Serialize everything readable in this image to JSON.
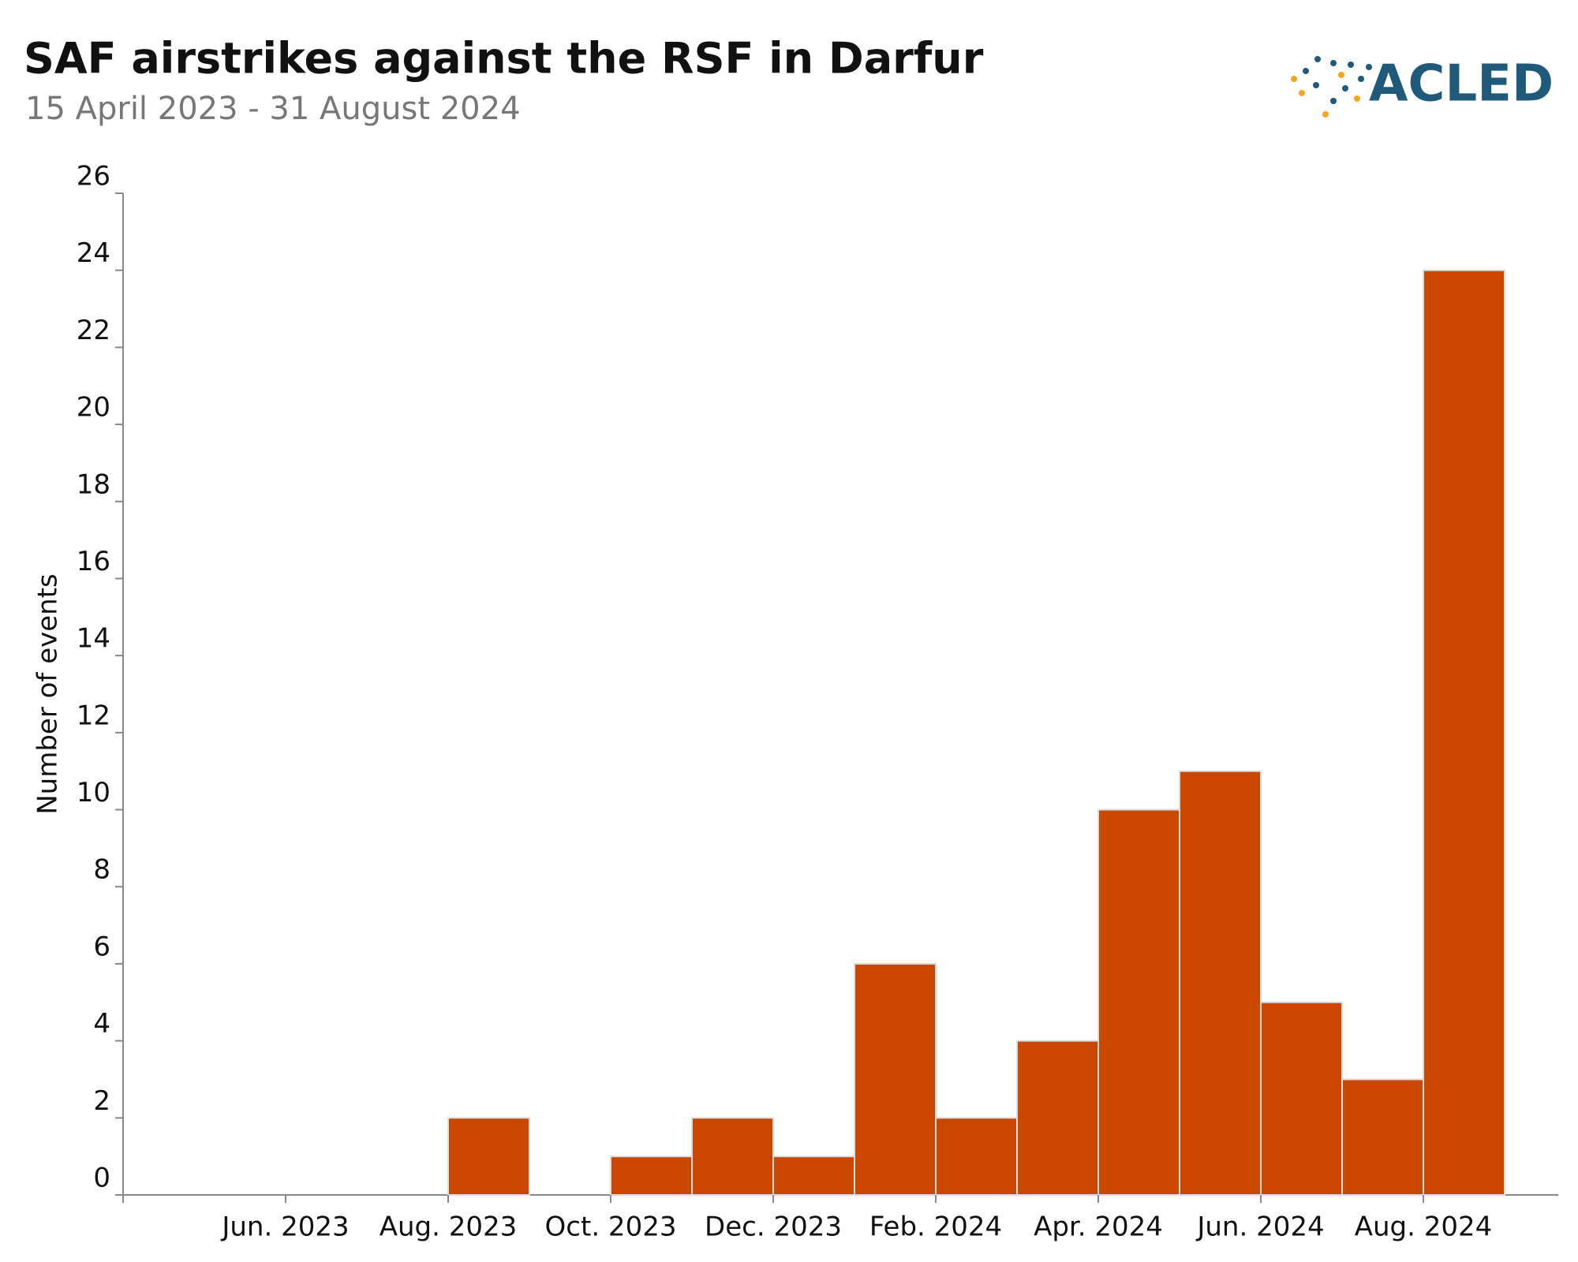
{
  "logo_text": "ACLED",
  "chart_data": {
    "type": "bar",
    "title": "SAF airstrikes against the RSF in Darfur",
    "subtitle": "15 April 2023 - 31 August 2024",
    "y_label": "Number of events",
    "categories": [
      null,
      null,
      "Jun. 2023",
      null,
      "Aug. 2023",
      null,
      "Oct. 2023",
      null,
      "Dec. 2023",
      null,
      "Feb. 2024",
      null,
      "Apr. 2024",
      null,
      "Jun. 2024",
      null,
      "Aug. 2024"
    ],
    "values": [
      0,
      0,
      0,
      0,
      2,
      0,
      1,
      2,
      1,
      6,
      2,
      4,
      10,
      11,
      5,
      3,
      24
    ],
    "color": "#c94700",
    "ylim": [
      0,
      26
    ],
    "yticks": [
      0,
      2,
      4,
      6,
      8,
      10,
      12,
      14,
      16,
      18,
      20,
      22,
      24,
      26
    ],
    "grid": false
  }
}
